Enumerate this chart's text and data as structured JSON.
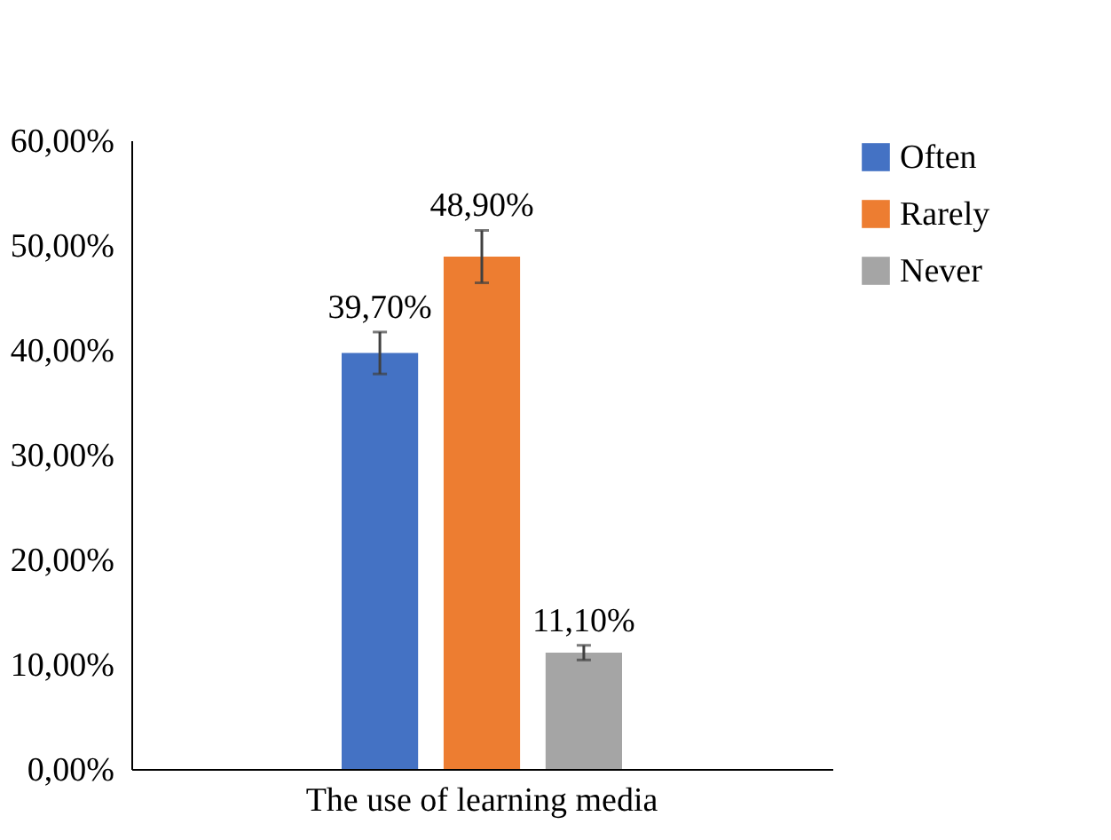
{
  "chart_data": {
    "type": "bar",
    "categories": [
      "The use of learning media"
    ],
    "series": [
      {
        "name": "Often",
        "color": "#4472c4",
        "values": [
          39.7
        ],
        "errors": [
          2
        ],
        "value_labels": [
          "39,70%"
        ]
      },
      {
        "name": "Rarely",
        "color": "#ed7d31",
        "values": [
          48.9
        ],
        "errors": [
          2.5
        ],
        "value_labels": [
          "48,90%"
        ]
      },
      {
        "name": "Never",
        "color": "#a5a5a5",
        "values": [
          11.1
        ],
        "errors": [
          0.7
        ],
        "value_labels": [
          "11,10%"
        ]
      }
    ],
    "ylim": [
      0,
      60
    ],
    "yticks": [
      {
        "value": 0,
        "label": "0,00%"
      },
      {
        "value": 10,
        "label": "10,00%"
      },
      {
        "value": 20,
        "label": "20,00%"
      },
      {
        "value": 30,
        "label": "30,00%"
      },
      {
        "value": 40,
        "label": "40,00%"
      },
      {
        "value": 50,
        "label": "50,00%"
      },
      {
        "value": 60,
        "label": "60,00%"
      }
    ],
    "grid": false,
    "legend": "top right"
  }
}
